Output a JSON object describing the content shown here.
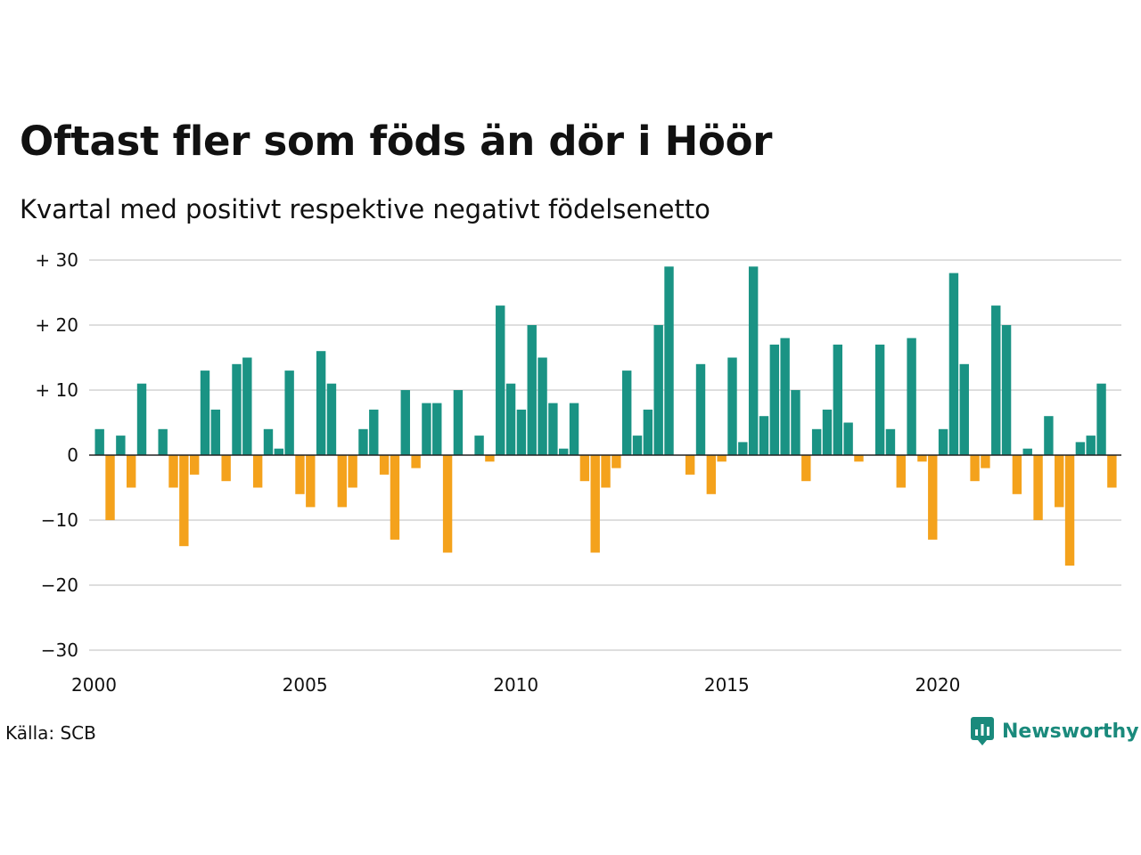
{
  "title": "Oftast fler som föds än dör i Höör",
  "subtitle": "Kvartal med positivt respektive negativt födelsenetto",
  "source": "Källa: SCB",
  "brand": {
    "name": "Newsworthy",
    "icon": "newsworthy-logo-icon"
  },
  "colors": {
    "positive": "#1a9384",
    "negative": "#f4a21c",
    "grid": "#dedede",
    "zero": "#222222"
  },
  "chart_data": {
    "type": "bar",
    "start": {
      "year": 2000,
      "quarter": 1
    },
    "values": [
      4,
      -10,
      3,
      -5,
      11,
      0,
      4,
      -5,
      -14,
      -3,
      13,
      7,
      -4,
      14,
      15,
      -5,
      4,
      1,
      13,
      -6,
      -8,
      16,
      11,
      -8,
      -5,
      4,
      7,
      -3,
      -13,
      10,
      -2,
      8,
      8,
      -15,
      10,
      0,
      3,
      -1,
      23,
      11,
      7,
      20,
      15,
      8,
      1,
      8,
      -4,
      -15,
      -5,
      -2,
      13,
      3,
      7,
      20,
      29,
      0,
      -3,
      14,
      -6,
      -1,
      15,
      2,
      29,
      6,
      17,
      18,
      10,
      -4,
      4,
      7,
      17,
      5,
      -1,
      0,
      17,
      4,
      -5,
      18,
      -1,
      -13,
      4,
      28,
      14,
      -4,
      -2,
      23,
      20,
      -6,
      1,
      -10,
      6,
      -8,
      -17,
      2,
      3,
      11,
      -5
    ],
    "ylim": [
      -30,
      30
    ],
    "yticks": [
      {
        "value": 30,
        "label": "+ 30"
      },
      {
        "value": 20,
        "label": "+ 20"
      },
      {
        "value": 10,
        "label": "+ 10"
      },
      {
        "value": 0,
        "label": "0"
      },
      {
        "value": -10,
        "label": "−10"
      },
      {
        "value": -20,
        "label": "−20"
      },
      {
        "value": -30,
        "label": "−30"
      }
    ],
    "xticks": [
      {
        "year": 2000,
        "label": "2000"
      },
      {
        "year": 2005,
        "label": "2005"
      },
      {
        "year": 2010,
        "label": "2010"
      },
      {
        "year": 2015,
        "label": "2015"
      },
      {
        "year": 2020,
        "label": "2020"
      }
    ],
    "grid": true,
    "legend": "none"
  }
}
